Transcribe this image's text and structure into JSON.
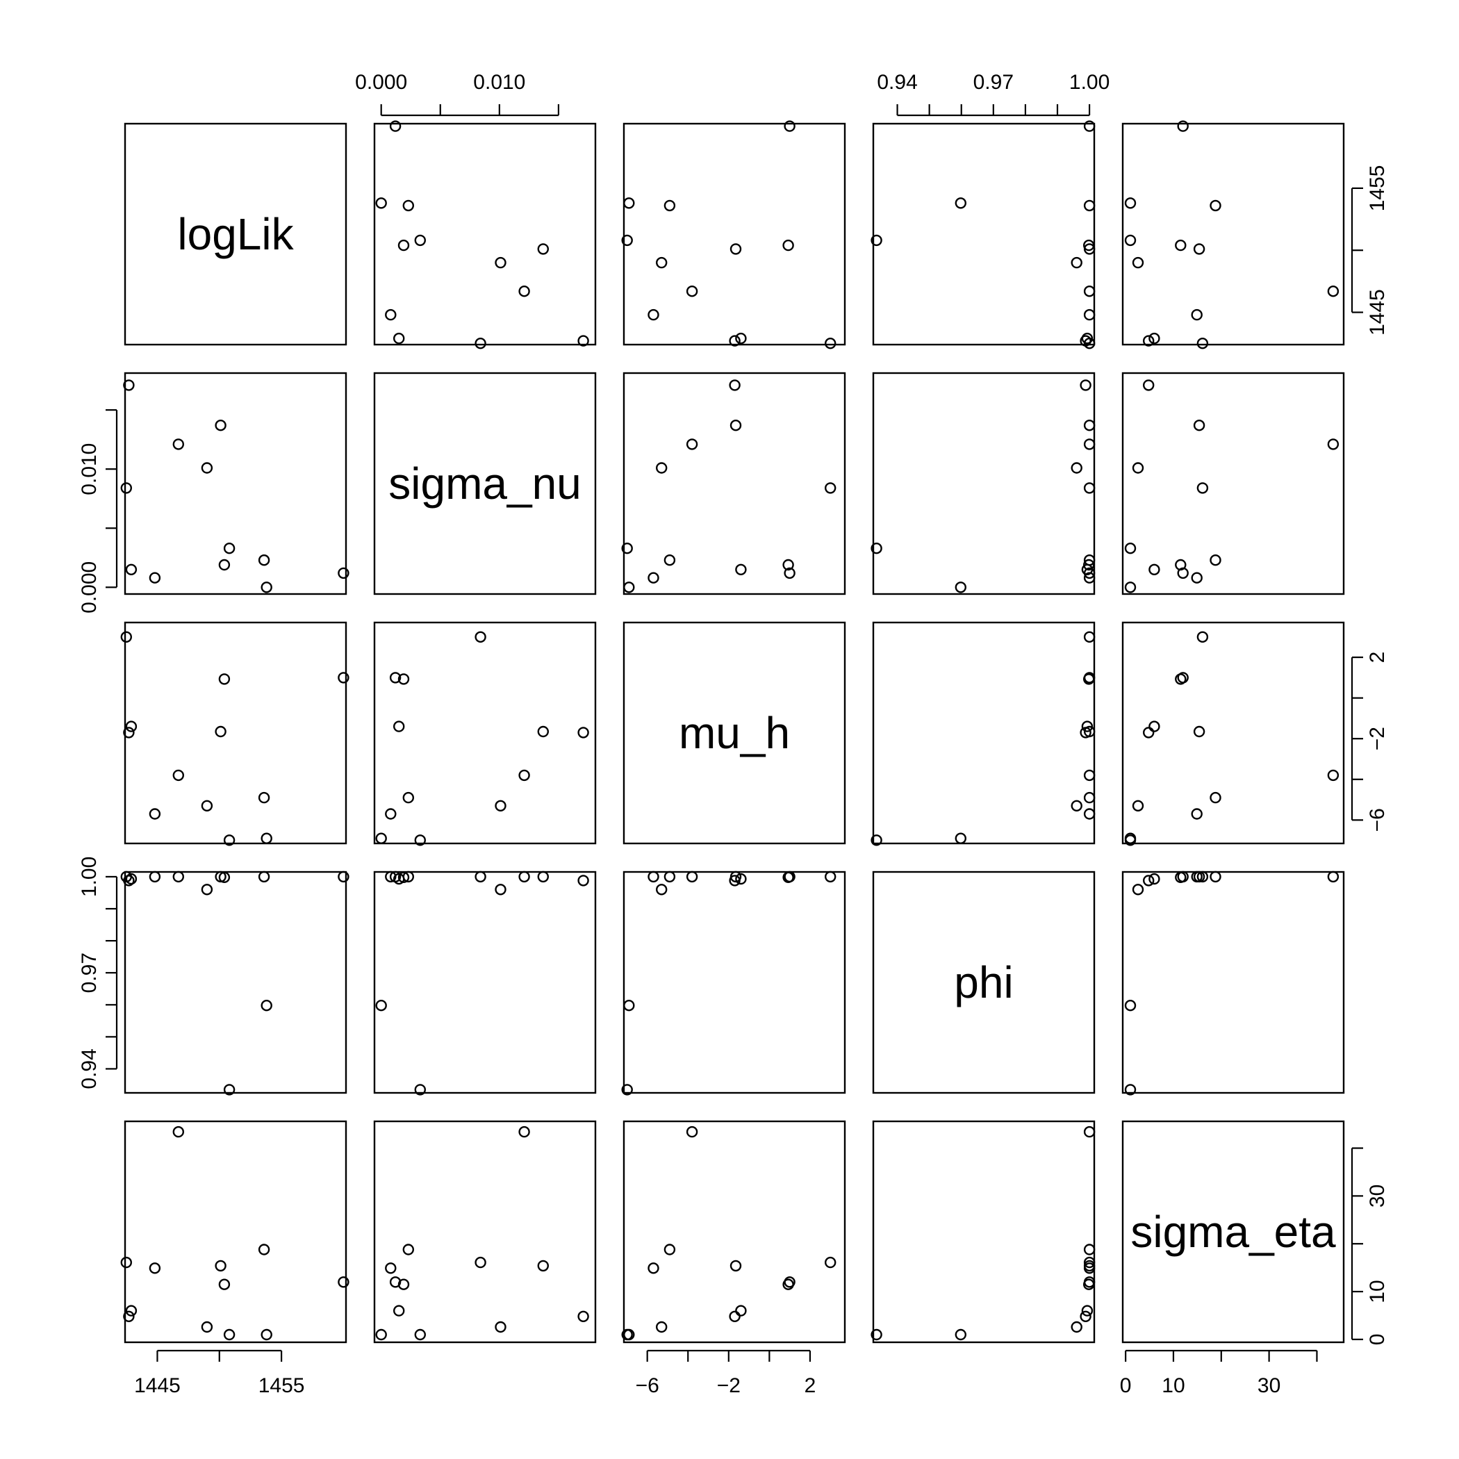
{
  "chart_data": {
    "type": "scatter",
    "variables": [
      {
        "name": "logLik",
        "range": [
          1442.4,
          1460.2
        ],
        "ticks": [
          1445,
          1450,
          1455
        ],
        "tick_labels": [
          "1445",
          "",
          "1455"
        ]
      },
      {
        "name": "sigma_nu",
        "range": [
          -0.00057,
          0.01812
        ],
        "ticks": [
          0.0,
          0.005,
          0.01,
          0.015
        ],
        "tick_labels": [
          "0.000",
          "",
          "0.010",
          ""
        ]
      },
      {
        "name": "mu_h",
        "range": [
          -7.15,
          3.71
        ],
        "ticks": [
          -6,
          -4,
          -2,
          0,
          2
        ],
        "tick_labels": [
          "−6",
          "",
          "−2",
          "",
          "2"
        ]
      },
      {
        "name": "phi",
        "range": [
          0.9325,
          1.0015
        ],
        "ticks": [
          0.94,
          0.95,
          0.96,
          0.97,
          0.98,
          0.99,
          1.0
        ],
        "tick_labels": [
          "0.94",
          "",
          "",
          "0.97",
          "",
          "",
          "1.00"
        ]
      },
      {
        "name": "sigma_eta",
        "range": [
          -0.6,
          45.6
        ],
        "ticks": [
          0,
          10,
          20,
          30,
          40
        ],
        "tick_labels": [
          "0",
          "10",
          "",
          "30",
          ""
        ]
      }
    ],
    "observations": [
      {
        "logLik": 1460.0,
        "sigma_nu": 0.0012,
        "mu_h": 1.0,
        "phi": 1.0,
        "sigma_eta": 12.0
      },
      {
        "logLik": 1453.8,
        "sigma_nu": 0.0,
        "mu_h": -6.9,
        "phi": 0.9598,
        "sigma_eta": 1.0
      },
      {
        "logLik": 1453.6,
        "sigma_nu": 0.0023,
        "mu_h": -4.9,
        "phi": 1.0,
        "sigma_eta": 18.8
      },
      {
        "logLik": 1450.8,
        "sigma_nu": 0.0033,
        "mu_h": -6.99,
        "phi": 0.9335,
        "sigma_eta": 1.0
      },
      {
        "logLik": 1450.4,
        "sigma_nu": 0.0019,
        "mu_h": 0.93,
        "phi": 0.9998,
        "sigma_eta": 11.5
      },
      {
        "logLik": 1450.1,
        "sigma_nu": 0.0137,
        "mu_h": -1.65,
        "phi": 1.0,
        "sigma_eta": 15.4
      },
      {
        "logLik": 1449.0,
        "sigma_nu": 0.0101,
        "mu_h": -5.3,
        "phi": 0.996,
        "sigma_eta": 2.6
      },
      {
        "logLik": 1446.7,
        "sigma_nu": 0.0121,
        "mu_h": -3.8,
        "phi": 1.0,
        "sigma_eta": 43.4
      },
      {
        "logLik": 1444.8,
        "sigma_nu": 0.0008,
        "mu_h": -5.7,
        "phi": 1.0,
        "sigma_eta": 14.9
      },
      {
        "logLik": 1442.9,
        "sigma_nu": 0.0015,
        "mu_h": -1.4,
        "phi": 0.9993,
        "sigma_eta": 6.0
      },
      {
        "logLik": 1442.7,
        "sigma_nu": 0.0171,
        "mu_h": -1.7,
        "phi": 0.9988,
        "sigma_eta": 4.8
      },
      {
        "logLik": 1442.5,
        "sigma_nu": 0.0084,
        "mu_h": 3.0,
        "phi": 1.0,
        "sigma_eta": 16.1
      }
    ],
    "point_marker": "open-circle",
    "grid": false,
    "legend": "none"
  }
}
